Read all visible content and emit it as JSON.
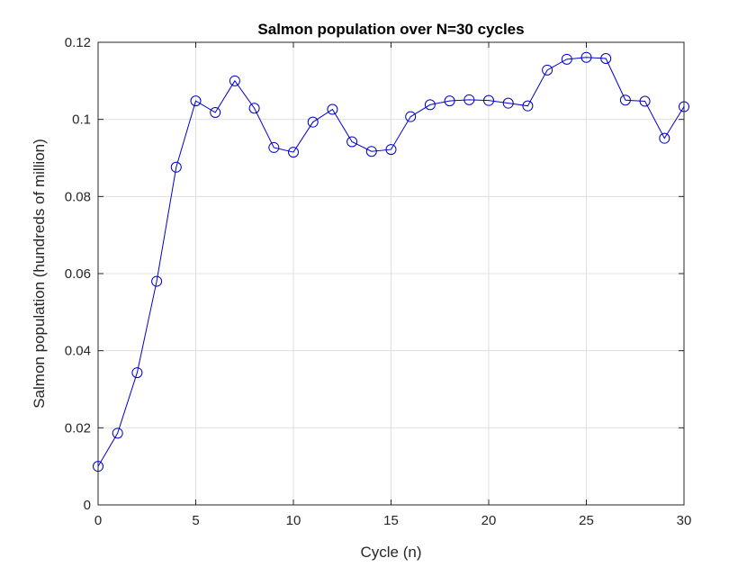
{
  "chart_data": {
    "type": "line",
    "title": "Salmon population over N=30 cycles",
    "xlabel": "Cycle (n)",
    "ylabel": "Salmon population (hundreds of million)",
    "xlim": [
      0,
      30
    ],
    "ylim": [
      0,
      0.12
    ],
    "grid": true,
    "marker": "circle",
    "line_color": "#0000cd",
    "xticks": [
      0,
      5,
      10,
      15,
      20,
      25,
      30
    ],
    "xtick_labels": [
      "0",
      "5",
      "10",
      "15",
      "20",
      "25",
      "30"
    ],
    "yticks": [
      0,
      0.02,
      0.04,
      0.06,
      0.08,
      0.1,
      0.12
    ],
    "ytick_labels": [
      "0",
      "0.02",
      "0.04",
      "0.06",
      "0.08",
      "0.1",
      "0.12"
    ],
    "x": [
      0,
      1,
      2,
      3,
      4,
      5,
      6,
      7,
      8,
      9,
      10,
      11,
      12,
      13,
      14,
      15,
      16,
      17,
      18,
      19,
      20,
      21,
      22,
      23,
      24,
      25,
      26,
      27,
      28,
      29,
      30
    ],
    "y": [
      0.01,
      0.0186,
      0.0343,
      0.058,
      0.0876,
      0.1048,
      0.1018,
      0.11,
      0.1029,
      0.0927,
      0.0915,
      0.0993,
      0.1026,
      0.0942,
      0.0917,
      0.0922,
      0.1007,
      0.1038,
      0.1048,
      0.1051,
      0.1049,
      0.1042,
      0.1035,
      0.1128,
      0.1156,
      0.1161,
      0.1158,
      0.105,
      0.1047,
      0.0951,
      0.1033
    ]
  }
}
